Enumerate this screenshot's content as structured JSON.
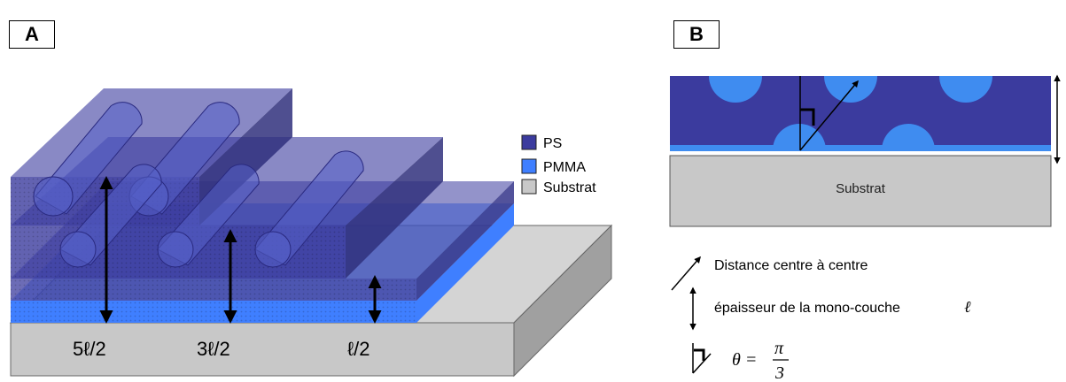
{
  "panel_a": {
    "label": "A",
    "legend": [
      {
        "label": "PS",
        "color": "#3b3b9e"
      },
      {
        "label": "PMMA",
        "color": "#3f7fff"
      },
      {
        "label": "Substrat",
        "color": "#c8c8c8"
      }
    ],
    "thickness_labels": [
      "5ℓ/2",
      "3ℓ/2",
      "ℓ/2"
    ]
  },
  "panel_b": {
    "label": "B",
    "substrate_label": "Substrat",
    "legend": {
      "center_distance": "Distance centre à centre",
      "monolayer_thickness": "épaisseur de la mono-couche",
      "ell_symbol": "ℓ",
      "angle_lhs": "θ =",
      "angle_num": "π",
      "angle_den": "3"
    }
  },
  "colors": {
    "ps": "#3b3b9e",
    "pmma": "#3f7fff",
    "substrate": "#c8c8c8",
    "substrate_side": "#a0a0a0",
    "substrate_top": "#d4d4d4"
  }
}
